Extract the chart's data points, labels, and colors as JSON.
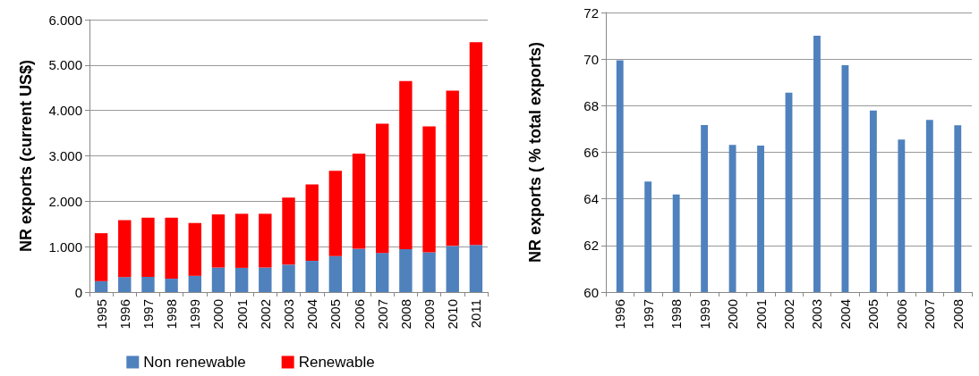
{
  "chart_data": [
    {
      "type": "bar",
      "stacked": true,
      "ylabel": "NR exports (current US$)",
      "categories": [
        "1995",
        "1996",
        "1997",
        "1998",
        "1999",
        "2000",
        "2001",
        "2002",
        "2003",
        "2004",
        "2005",
        "2006",
        "2007",
        "2008",
        "2009",
        "2010",
        "2011"
      ],
      "series": [
        {
          "name": "Non renewable",
          "color": "#4f81bd",
          "values": [
            240,
            330,
            336,
            294,
            357,
            540,
            533,
            540,
            603,
            687,
            792,
            953,
            862,
            946,
            876,
            1016,
            1037
          ]
        },
        {
          "name": "Renewable",
          "color": "#ff0000",
          "values": [
            1056,
            1254,
            1304,
            1346,
            1164,
            1170,
            1191,
            1184,
            1478,
            1682,
            1878,
            2095,
            2845,
            3700,
            2775,
            3420,
            4464
          ]
        }
      ],
      "ylim": [
        0,
        6000
      ],
      "yticks": [
        0,
        {
          "value": 1000,
          "label": "1.000"
        },
        {
          "value": 2000,
          "label": "2.000"
        },
        {
          "value": 3000,
          "label": "3.000"
        },
        {
          "value": 4000,
          "label": "4.000"
        },
        {
          "value": 5000,
          "label": "5.000"
        },
        {
          "value": 6000,
          "label": "6.000"
        }
      ],
      "grid": "y",
      "legend": "bottom"
    },
    {
      "type": "bar",
      "ylabel": "NR exports ( % total exports)",
      "categories": [
        "1996",
        "1997",
        "1998",
        "1999",
        "2000",
        "2001",
        "2002",
        "2003",
        "2004",
        "2005",
        "2006",
        "2007",
        "2008"
      ],
      "series": [
        {
          "color": "#4f81bd",
          "values": [
            69.95,
            64.74,
            64.19,
            67.17,
            66.32,
            66.29,
            68.56,
            71.0,
            69.74,
            67.79,
            66.55,
            67.39,
            67.16
          ]
        }
      ],
      "ylim": [
        60,
        72
      ],
      "yticks": [
        60,
        62,
        64,
        66,
        68,
        70,
        72
      ],
      "grid": "y"
    }
  ]
}
